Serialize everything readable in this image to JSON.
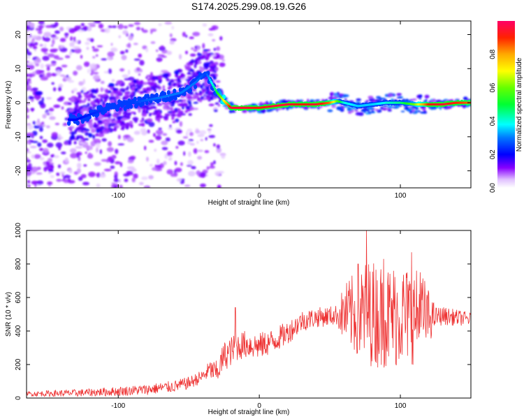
{
  "title": "S174.2025.299.08.19.G26",
  "colorbar": {
    "label": "Normalized spectral amplitude",
    "range": [
      0,
      1
    ],
    "ticks": [
      "0.0",
      "0.2",
      "0.4",
      "0.6",
      "0.8"
    ],
    "tick_values": [
      0,
      0.2,
      0.4,
      0.6,
      0.8
    ]
  },
  "chart_data": [
    {
      "type": "heatmap",
      "title": "S174.2025.299.08.19.G26",
      "xlabel": "Height of straight line (km)",
      "ylabel": "Frequency (Hz)",
      "xlim": [
        -165,
        150
      ],
      "ylim": [
        -25,
        24
      ],
      "xticks": [
        -100,
        0,
        100
      ],
      "xtick_labels": [
        "-100",
        "0",
        "100"
      ],
      "yticks": [
        -20,
        -10,
        0,
        10,
        20
      ],
      "ytick_labels": [
        "-20",
        "-10",
        "0",
        "10",
        "20"
      ],
      "ridge": {
        "x": [
          -130,
          -110,
          -90,
          -70,
          -55,
          -45,
          -38,
          -30,
          -25,
          -20,
          -10,
          0,
          10,
          20,
          30,
          40,
          50,
          55,
          60,
          70,
          80,
          90,
          100,
          110,
          120,
          130,
          140,
          150
        ],
        "frequency": [
          -5,
          -2,
          0,
          1.5,
          3,
          6,
          9,
          3,
          0.5,
          -1.5,
          -1.5,
          -1.5,
          -1,
          -0.5,
          -0.5,
          -0.5,
          0,
          0.5,
          0,
          -1,
          -0.5,
          0,
          0,
          -0.5,
          -0.5,
          -0.5,
          0,
          0
        ],
        "amplitude": [
          0.2,
          0.25,
          0.25,
          0.3,
          0.3,
          0.3,
          0.25,
          0.5,
          0.7,
          0.95,
          0.95,
          0.9,
          0.95,
          0.95,
          0.9,
          0.95,
          0.85,
          0.6,
          0.4,
          0.35,
          0.35,
          0.4,
          0.45,
          0.6,
          0.9,
          0.95,
          0.9,
          0.85
        ]
      }
    },
    {
      "type": "line",
      "xlabel": "Height of straight line (km)",
      "ylabel": "SNR (10 * v/v)",
      "xlim": [
        -165,
        150
      ],
      "ylim": [
        0,
        1000
      ],
      "xticks": [
        -100,
        0,
        100
      ],
      "xtick_labels": [
        "-100",
        "0",
        "100"
      ],
      "yticks": [
        0,
        200,
        400,
        600,
        800,
        1000
      ],
      "ytick_labels": [
        "0",
        "200",
        "400",
        "600",
        "800",
        "1000"
      ],
      "series": [
        {
          "name": "SNR",
          "color": "#ee3333",
          "envelope_x": [
            -165,
            -130,
            -100,
            -80,
            -60,
            -50,
            -40,
            -35,
            -30,
            -25,
            -20,
            -15,
            -10,
            0,
            10,
            20,
            30,
            40,
            50,
            60,
            70,
            80,
            90,
            100,
            110,
            120,
            130,
            140,
            150
          ],
          "envelope_y": [
            25,
            30,
            40,
            50,
            70,
            90,
            130,
            170,
            150,
            250,
            280,
            310,
            320,
            310,
            340,
            390,
            460,
            480,
            490,
            500,
            500,
            510,
            480,
            500,
            490,
            480,
            490,
            480,
            470
          ],
          "spread_x": [
            -165,
            -40,
            -25,
            0,
            40,
            55,
            60,
            75,
            95,
            115,
            125,
            150
          ],
          "spread_y": [
            15,
            40,
            90,
            80,
            60,
            60,
            180,
            320,
            320,
            280,
            60,
            40
          ],
          "peaks_x": [
            -17,
            76,
            108,
            88,
            70,
            114
          ],
          "peaks_y": [
            540,
            1000,
            870,
            830,
            800,
            750
          ]
        }
      ]
    }
  ]
}
